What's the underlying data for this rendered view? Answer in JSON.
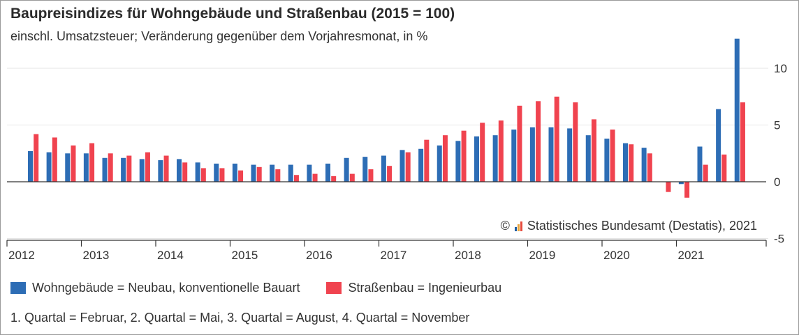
{
  "header": {
    "title": "Baupreisindizes für Wohngebäude und Straßenbau (2015 = 100)",
    "subtitle": "einschl. Umsatzsteuer; Veränderung gegenüber dem Vorjahresmonat, in %"
  },
  "copyright": {
    "symbol": "©",
    "text": "Statistisches Bundesamt (Destatis), 2021",
    "logo_icon": "destatis-logo-icon",
    "logo_colors": [
      "#1f5ea8",
      "#e8a33d",
      "#e64b3c"
    ]
  },
  "legend": [
    {
      "label": "Wohngebäude = Neubau, konventionelle Bauart",
      "color": "#2d6db5"
    },
    {
      "label": "Straßenbau = Ingenieurbau",
      "color": "#f0434f"
    }
  ],
  "footnote": "1. Quartal = Februar, 2. Quartal = Mai, 3. Quartal = August, 4. Quartal = November",
  "chart_data": {
    "type": "bar",
    "ylim": [
      -5,
      12.5
    ],
    "yticks": [
      10,
      5,
      0,
      -5
    ],
    "ytick_labels": [
      "10",
      "5",
      "0",
      "-5"
    ],
    "years": [
      "2012",
      "2013",
      "2014",
      "2015",
      "2016",
      "2017",
      "2018",
      "2019",
      "2020",
      "2021"
    ],
    "quarters_per_year": 4,
    "grid": true,
    "series": [
      {
        "name": "Wohngebäude = Neubau, konventionelle Bauart",
        "color": "#2d6db5",
        "values": [
          2.7,
          2.6,
          2.5,
          2.5,
          2.1,
          2.1,
          2.0,
          1.9,
          2.0,
          1.7,
          1.6,
          1.6,
          1.5,
          1.5,
          1.5,
          1.5,
          1.6,
          2.1,
          2.2,
          2.3,
          2.8,
          2.9,
          3.2,
          3.6,
          4.0,
          4.1,
          4.6,
          4.8,
          4.8,
          4.7,
          4.1,
          3.8,
          3.4,
          3.0,
          null,
          -0.2,
          3.1,
          6.4,
          12.6
        ]
      },
      {
        "name": "Straßenbau = Ingenieurbau",
        "color": "#f0434f",
        "values": [
          4.2,
          3.9,
          3.2,
          3.4,
          2.5,
          2.3,
          2.6,
          2.3,
          1.7,
          1.2,
          1.2,
          1.0,
          1.3,
          1.1,
          0.6,
          0.7,
          0.5,
          0.7,
          1.1,
          1.4,
          2.6,
          3.7,
          4.1,
          4.5,
          5.2,
          5.4,
          6.7,
          7.1,
          7.5,
          7.0,
          5.5,
          4.6,
          3.3,
          2.5,
          -0.9,
          -1.4,
          1.5,
          2.4,
          7.0
        ]
      }
    ]
  }
}
